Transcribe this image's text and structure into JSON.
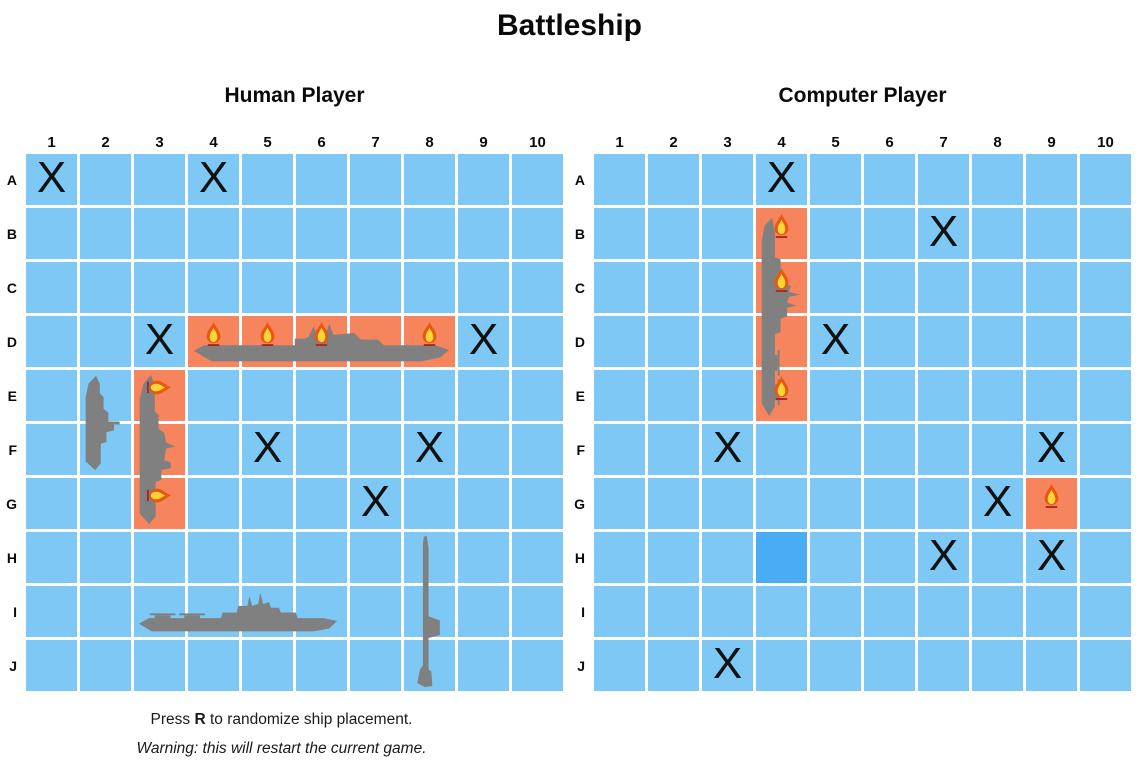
{
  "title": "Battleship",
  "column_labels": [
    "1",
    "2",
    "3",
    "4",
    "5",
    "6",
    "7",
    "8",
    "9",
    "10"
  ],
  "row_labels": [
    "A",
    "B",
    "C",
    "D",
    "E",
    "F",
    "G",
    "H",
    "I",
    "J"
  ],
  "miss_glyph": "X",
  "boards": [
    {
      "id": "human",
      "title": "Human Player",
      "misses": [
        "A1",
        "A4",
        "D3",
        "D9",
        "F5",
        "F8",
        "G7"
      ],
      "hit_cells": [
        "D4",
        "D5",
        "D6",
        "D7",
        "D8",
        "E3",
        "F3",
        "G3"
      ],
      "fires": [
        {
          "cell": "D4"
        },
        {
          "cell": "D5"
        },
        {
          "cell": "D6"
        },
        {
          "cell": "D8"
        },
        {
          "cell": "E3",
          "rotated": true
        },
        {
          "cell": "G3",
          "rotated": true
        }
      ],
      "ships": [
        {
          "type": "carrier",
          "length": 5,
          "start": "D4",
          "orientation": "horizontal",
          "status": "sunk"
        },
        {
          "type": "battleship",
          "length": 4,
          "start": "I3",
          "orientation": "horizontal",
          "status": "afloat"
        },
        {
          "type": "cruiser",
          "length": 3,
          "start": "E3",
          "orientation": "vertical",
          "status": "sunk"
        },
        {
          "type": "submarine",
          "length": 3,
          "start": "H8",
          "orientation": "vertical",
          "status": "afloat"
        },
        {
          "type": "destroyer",
          "length": 2,
          "start": "E2",
          "orientation": "vertical",
          "status": "afloat"
        }
      ],
      "highlighted_cell": null
    },
    {
      "id": "computer",
      "title": "Computer Player",
      "misses": [
        "A4",
        "B7",
        "D5",
        "F3",
        "F9",
        "G8",
        "H7",
        "H9",
        "J3"
      ],
      "hit_cells": [
        "B4",
        "C4",
        "D4",
        "E4",
        "G9"
      ],
      "fires": [
        {
          "cell": "B4"
        },
        {
          "cell": "C4"
        },
        {
          "cell": "E4"
        },
        {
          "cell": "G9"
        }
      ],
      "ships": [
        {
          "type": "battleship",
          "length": 4,
          "start": "B4",
          "orientation": "vertical",
          "status": "sunk"
        }
      ],
      "highlighted_cell": "H4"
    }
  ],
  "footer": {
    "line1_prefix": "Press ",
    "line1_key": "R",
    "line1_suffix": " to randomize ship placement.",
    "line2": "Warning: this will restart the current game."
  },
  "colors": {
    "water": "#7ec8f5",
    "water_highlight": "#4aacf5",
    "hit": "#f6845c",
    "ship": "#808080",
    "grid_line": "#ffffff",
    "mark": "#111111",
    "fire_outer": "#e8590c",
    "fire_inner": "#ffd43b",
    "fire_base": "#b02525"
  }
}
